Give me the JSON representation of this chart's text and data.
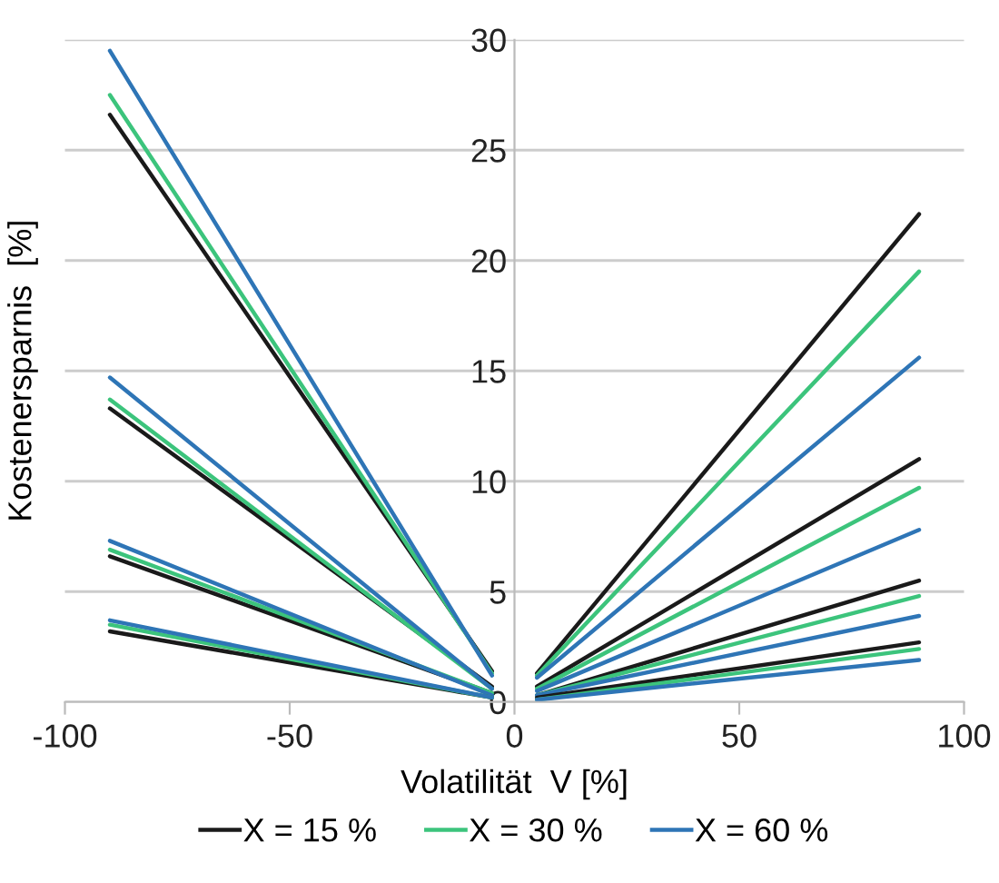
{
  "chart_data": {
    "type": "line",
    "xlabel": "Volatilität  V [%]",
    "ylabel": "Kostenersparnis  [%]",
    "xlim": [
      -100,
      100
    ],
    "xticks": [
      -100,
      -50,
      0,
      50,
      100
    ],
    "ylim": [
      0,
      30
    ],
    "yticks": [
      0,
      5,
      10,
      15,
      20,
      25,
      30
    ],
    "grid": "y",
    "legend": "bottom",
    "marker": "none",
    "line_style": "solid",
    "series": [
      {
        "name": "X = 15 %",
        "color": "#1a1a1a",
        "x": [
          -90,
          -5
        ],
        "values": [
          26.6,
          1.4
        ]
      },
      {
        "name": "X = 30 %",
        "color": "#3cc47c",
        "x": [
          -90,
          -5
        ],
        "values": [
          27.5,
          1.3
        ]
      },
      {
        "name": "X = 60 %",
        "color": "#2e75b6",
        "x": [
          -90,
          -5
        ],
        "values": [
          29.5,
          1.2
        ]
      },
      {
        "color": "#1a1a1a",
        "x": [
          -90,
          -5
        ],
        "values": [
          13.3,
          0.7
        ]
      },
      {
        "color": "#3cc47c",
        "x": [
          -90,
          -5
        ],
        "values": [
          13.7,
          0.6
        ]
      },
      {
        "color": "#2e75b6",
        "x": [
          -90,
          -5
        ],
        "values": [
          14.7,
          0.6
        ]
      },
      {
        "color": "#1a1a1a",
        "x": [
          -90,
          -5
        ],
        "values": [
          6.6,
          0.4
        ]
      },
      {
        "color": "#3cc47c",
        "x": [
          -90,
          -5
        ],
        "values": [
          6.9,
          0.4
        ]
      },
      {
        "color": "#2e75b6",
        "x": [
          -90,
          -5
        ],
        "values": [
          7.3,
          0.3
        ]
      },
      {
        "color": "#1a1a1a",
        "x": [
          -90,
          -5
        ],
        "values": [
          3.2,
          0.2
        ]
      },
      {
        "color": "#3cc47c",
        "x": [
          -90,
          -5
        ],
        "values": [
          3.5,
          0.2
        ]
      },
      {
        "color": "#2e75b6",
        "x": [
          -90,
          -5
        ],
        "values": [
          3.7,
          0.2
        ]
      },
      {
        "color": "#1a1a1a",
        "x": [
          5,
          90
        ],
        "values": [
          1.3,
          22.1
        ]
      },
      {
        "color": "#3cc47c",
        "x": [
          5,
          90
        ],
        "values": [
          1.2,
          19.5
        ]
      },
      {
        "color": "#2e75b6",
        "x": [
          5,
          90
        ],
        "values": [
          1.1,
          15.6
        ]
      },
      {
        "color": "#1a1a1a",
        "x": [
          5,
          90
        ],
        "values": [
          0.7,
          11.0
        ]
      },
      {
        "color": "#3cc47c",
        "x": [
          5,
          90
        ],
        "values": [
          0.6,
          9.7
        ]
      },
      {
        "color": "#2e75b6",
        "x": [
          5,
          90
        ],
        "values": [
          0.5,
          7.8
        ]
      },
      {
        "color": "#1a1a1a",
        "x": [
          5,
          90
        ],
        "values": [
          0.3,
          5.5
        ]
      },
      {
        "color": "#3cc47c",
        "x": [
          5,
          90
        ],
        "values": [
          0.3,
          4.8
        ]
      },
      {
        "color": "#2e75b6",
        "x": [
          5,
          90
        ],
        "values": [
          0.3,
          3.9
        ]
      },
      {
        "color": "#1a1a1a",
        "x": [
          5,
          90
        ],
        "values": [
          0.2,
          2.7
        ]
      },
      {
        "color": "#3cc47c",
        "x": [
          5,
          90
        ],
        "values": [
          0.1,
          2.4
        ]
      },
      {
        "color": "#2e75b6",
        "x": [
          5,
          90
        ],
        "values": [
          0.1,
          1.9
        ]
      }
    ]
  }
}
